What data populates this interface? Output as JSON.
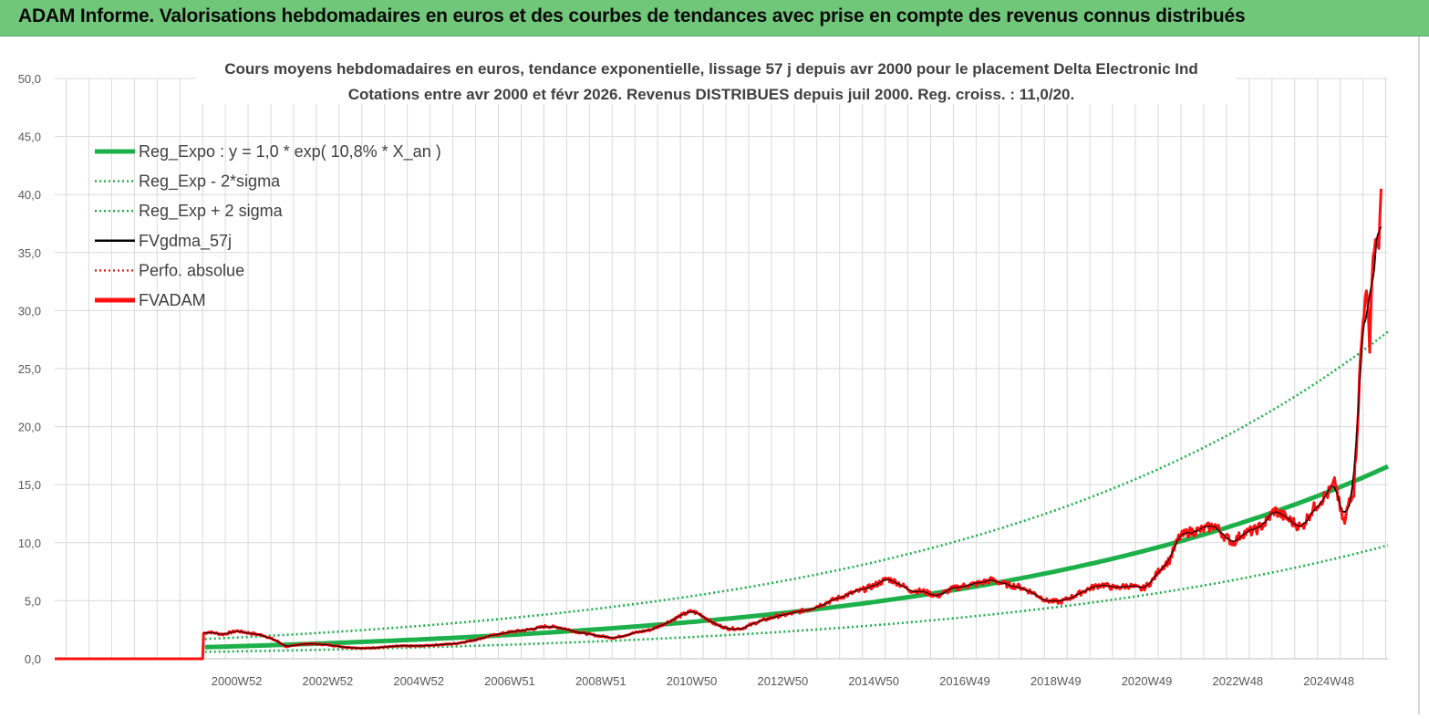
{
  "header": {
    "title": "ADAM Informe. Valorisations hebdomadaires en euros et des courbes de tendances avec prise en compte des revenus connus distribués"
  },
  "colors": {
    "header_bg": "#70c77a",
    "reg_expo": "#1db04a",
    "fvgdma": "#000000",
    "fvadam": "#ff1010",
    "perfo": "#e0201a",
    "grid": "#d9d9d9",
    "axis_text": "#595959",
    "title_text": "#404040"
  },
  "chart_data": {
    "type": "line",
    "title": "Cours moyens hebdomadaires en euros, tendance exponentielle, lissage 57 j depuis avr 2000 pour le placement Delta Electronic Ind",
    "subtitle": "Cotations entre avr 2000 et févr 2026. Revenus DISTRIBUES depuis juil 2000. Reg. croiss. : 11,0/20.",
    "xlabel": "",
    "ylabel": "",
    "x_domain": [
      1997.0,
      2026.3
    ],
    "ylim": [
      0,
      50
    ],
    "y_ticks": [
      "0,0",
      "5,0",
      "10,0",
      "15,0",
      "20,0",
      "25,0",
      "30,0",
      "35,0",
      "40,0",
      "45,0",
      "50,0"
    ],
    "x_tick_labels": [
      {
        "label": "2000W52",
        "x": 2001.0
      },
      {
        "label": "2002W52",
        "x": 2003.0
      },
      {
        "label": "2004W52",
        "x": 2005.0
      },
      {
        "label": "2006W51",
        "x": 2007.0
      },
      {
        "label": "2008W51",
        "x": 2009.0
      },
      {
        "label": "2010W50",
        "x": 2011.0
      },
      {
        "label": "2012W50",
        "x": 2013.0
      },
      {
        "label": "2014W50",
        "x": 2015.0
      },
      {
        "label": "2016W49",
        "x": 2017.0
      },
      {
        "label": "2018W49",
        "x": 2019.0
      },
      {
        "label": "2020W49",
        "x": 2021.0
      },
      {
        "label": "2022W48",
        "x": 2023.0
      },
      {
        "label": "2024W48",
        "x": 2025.0
      }
    ],
    "grid": true,
    "legend_position": "top-left",
    "series": [
      {
        "name": "Reg_Expo : y = 1,0 * exp( 10,8% *  X_an )",
        "kind": "exp_trend",
        "style": "solid-thick",
        "color": "#1db04a",
        "a": 1.0,
        "b": 0.108,
        "x0": 2000.3,
        "x_start": 2000.3,
        "x_end": 2026.3
      },
      {
        "name": "Reg_Exp - 2*sigma",
        "kind": "exp_trend",
        "style": "dotted",
        "color": "#1db04a",
        "a": 0.59,
        "b": 0.108,
        "x0": 2000.3,
        "x_start": 2000.3,
        "x_end": 2026.3
      },
      {
        "name": "Reg_Exp + 2 sigma",
        "kind": "exp_trend",
        "style": "dotted",
        "color": "#1db04a",
        "a": 1.7,
        "b": 0.108,
        "x0": 2000.3,
        "x_start": 2000.3,
        "x_end": 2026.3
      },
      {
        "name": "FVgdma_57j",
        "kind": "smoothed",
        "style": "solid",
        "color": "#000000"
      },
      {
        "name": "Perfo. absolue",
        "kind": "legend_only",
        "style": "dotted",
        "color": "#e0201a"
      },
      {
        "name": "FVADAM",
        "kind": "points",
        "style": "solid-thick",
        "color": "#ff1010",
        "points": [
          [
            1997.0,
            0.0
          ],
          [
            2000.25,
            0.0
          ],
          [
            2000.27,
            2.2
          ],
          [
            2000.4,
            2.3
          ],
          [
            2000.7,
            2.1
          ],
          [
            2001.0,
            2.4
          ],
          [
            2001.3,
            2.2
          ],
          [
            2001.6,
            2.0
          ],
          [
            2001.9,
            1.5
          ],
          [
            2002.1,
            1.0
          ],
          [
            2002.3,
            1.2
          ],
          [
            2002.6,
            1.3
          ],
          [
            2003.0,
            1.2
          ],
          [
            2003.4,
            1.0
          ],
          [
            2003.8,
            0.9
          ],
          [
            2004.2,
            1.0
          ],
          [
            2004.6,
            1.1
          ],
          [
            2005.0,
            1.1
          ],
          [
            2005.4,
            1.2
          ],
          [
            2005.8,
            1.3
          ],
          [
            2006.2,
            1.6
          ],
          [
            2006.6,
            2.0
          ],
          [
            2007.0,
            2.3
          ],
          [
            2007.4,
            2.5
          ],
          [
            2007.8,
            2.8
          ],
          [
            2008.1,
            2.7
          ],
          [
            2008.5,
            2.3
          ],
          [
            2008.9,
            2.0
          ],
          [
            2009.3,
            1.8
          ],
          [
            2009.7,
            2.2
          ],
          [
            2010.1,
            2.5
          ],
          [
            2010.5,
            3.2
          ],
          [
            2010.8,
            3.8
          ],
          [
            2011.0,
            4.1
          ],
          [
            2011.2,
            3.8
          ],
          [
            2011.5,
            3.0
          ],
          [
            2011.8,
            2.6
          ],
          [
            2012.1,
            2.6
          ],
          [
            2012.4,
            3.1
          ],
          [
            2012.8,
            3.6
          ],
          [
            2013.2,
            3.9
          ],
          [
            2013.6,
            4.3
          ],
          [
            2014.0,
            4.9
          ],
          [
            2014.4,
            5.5
          ],
          [
            2014.8,
            6.0
          ],
          [
            2015.0,
            6.3
          ],
          [
            2015.3,
            6.9
          ],
          [
            2015.5,
            6.6
          ],
          [
            2015.8,
            5.9
          ],
          [
            2016.1,
            5.8
          ],
          [
            2016.4,
            5.4
          ],
          [
            2016.7,
            6.0
          ],
          [
            2017.0,
            6.3
          ],
          [
            2017.3,
            6.5
          ],
          [
            2017.6,
            6.8
          ],
          [
            2017.9,
            6.4
          ],
          [
            2018.2,
            6.2
          ],
          [
            2018.5,
            5.7
          ],
          [
            2018.8,
            5.0
          ],
          [
            2019.1,
            4.9
          ],
          [
            2019.4,
            5.4
          ],
          [
            2019.7,
            6.0
          ],
          [
            2020.0,
            6.4
          ],
          [
            2020.3,
            6.1
          ],
          [
            2020.6,
            6.3
          ],
          [
            2020.9,
            6.0
          ],
          [
            2021.1,
            6.6
          ],
          [
            2021.3,
            7.8
          ],
          [
            2021.5,
            8.5
          ],
          [
            2021.7,
            10.4
          ],
          [
            2021.9,
            10.9
          ],
          [
            2022.2,
            11.1
          ],
          [
            2022.5,
            11.5
          ],
          [
            2022.7,
            10.6
          ],
          [
            2022.9,
            10.0
          ],
          [
            2023.1,
            10.8
          ],
          [
            2023.4,
            11.1
          ],
          [
            2023.6,
            11.7
          ],
          [
            2023.8,
            12.8
          ],
          [
            2024.0,
            12.3
          ],
          [
            2024.2,
            11.8
          ],
          [
            2024.4,
            11.3
          ],
          [
            2024.6,
            12.6
          ],
          [
            2024.8,
            13.6
          ],
          [
            2025.0,
            14.3
          ],
          [
            2025.15,
            15.2
          ],
          [
            2025.25,
            12.8
          ],
          [
            2025.35,
            11.6
          ],
          [
            2025.45,
            13.8
          ],
          [
            2025.55,
            14.5
          ],
          [
            2025.6,
            18.0
          ],
          [
            2025.65,
            22.0
          ],
          [
            2025.7,
            26.0
          ],
          [
            2025.75,
            29.0
          ],
          [
            2025.8,
            32.0
          ],
          [
            2025.85,
            30.0
          ],
          [
            2025.9,
            27.5
          ],
          [
            2025.95,
            33.0
          ],
          [
            2026.0,
            36.0
          ],
          [
            2026.05,
            35.0
          ],
          [
            2026.1,
            36.5
          ],
          [
            2026.15,
            40.5
          ]
        ]
      }
    ]
  }
}
